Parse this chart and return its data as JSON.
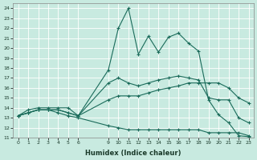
{
  "xlabel": "Humidex (Indice chaleur)",
  "ylabel": "",
  "xlim": [
    -0.5,
    23.5
  ],
  "ylim": [
    11,
    24.5
  ],
  "yticks": [
    11,
    12,
    13,
    14,
    15,
    16,
    17,
    18,
    19,
    20,
    21,
    22,
    23,
    24
  ],
  "xtick_vals": [
    0,
    1,
    2,
    3,
    4,
    5,
    6,
    9,
    10,
    11,
    12,
    13,
    14,
    15,
    16,
    17,
    18,
    19,
    20,
    21,
    22,
    23
  ],
  "bg_color": "#c8eae0",
  "grid_color": "#ffffff",
  "line_color": "#1a6b5a",
  "line1_x": [
    0,
    1,
    2,
    3,
    4,
    5,
    6,
    9,
    10,
    11,
    12,
    13,
    14,
    15,
    16,
    17,
    18,
    19,
    20,
    21,
    22,
    23
  ],
  "line1_y": [
    13.2,
    13.8,
    14.0,
    14.0,
    14.0,
    14.0,
    13.2,
    17.8,
    22.0,
    24.0,
    19.4,
    21.2,
    19.6,
    21.1,
    21.5,
    20.5,
    19.7,
    14.8,
    13.3,
    12.5,
    11.2,
    11.1
  ],
  "line2_x": [
    0,
    1,
    2,
    3,
    4,
    5,
    6,
    9,
    10,
    11,
    12,
    13,
    14,
    15,
    16,
    17,
    18,
    19,
    20,
    21,
    22,
    23
  ],
  "line2_y": [
    13.2,
    13.5,
    13.8,
    13.8,
    13.8,
    13.5,
    13.2,
    16.5,
    17.0,
    16.5,
    16.2,
    16.5,
    16.8,
    17.0,
    17.2,
    17.0,
    16.8,
    15.0,
    14.8,
    14.8,
    13.0,
    12.5
  ],
  "line3_x": [
    0,
    1,
    2,
    3,
    4,
    5,
    6,
    9,
    10,
    11,
    12,
    13,
    14,
    15,
    16,
    17,
    18,
    19,
    20,
    21,
    22,
    23
  ],
  "line3_y": [
    13.2,
    13.5,
    13.8,
    13.8,
    13.8,
    13.5,
    13.2,
    14.8,
    15.2,
    15.2,
    15.2,
    15.5,
    15.8,
    16.0,
    16.2,
    16.5,
    16.5,
    16.5,
    16.5,
    16.0,
    15.0,
    14.5
  ],
  "line4_x": [
    0,
    1,
    2,
    3,
    4,
    5,
    6,
    9,
    10,
    11,
    12,
    13,
    14,
    15,
    16,
    17,
    18,
    19,
    20,
    21,
    22,
    23
  ],
  "line4_y": [
    13.2,
    13.5,
    13.8,
    13.8,
    13.5,
    13.2,
    13.0,
    12.2,
    12.0,
    11.8,
    11.8,
    11.8,
    11.8,
    11.8,
    11.8,
    11.8,
    11.8,
    11.5,
    11.5,
    11.5,
    11.5,
    11.2
  ]
}
